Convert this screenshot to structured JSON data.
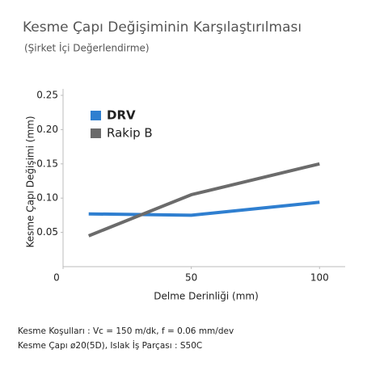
{
  "chart_data": {
    "type": "line",
    "title": "Kesme Çapı Değişiminin Karşılaştırılması",
    "subtitle": "(Şirket İçi Değerlendirme)",
    "x_label": "Delme Derinliği (mm)",
    "y_label": "Kesme Çapı Değişimi (mm)",
    "x": [
      10,
      50,
      100
    ],
    "series": [
      {
        "name": "DRV",
        "color": "#2f7fd0",
        "values": [
          0.077,
          0.075,
          0.094
        ]
      },
      {
        "name": "Rakip B",
        "color": "#6b6b6b",
        "values": [
          0.045,
          0.105,
          0.15
        ]
      }
    ],
    "xlim": [
      0,
      110
    ],
    "xticks": [
      0,
      50,
      100
    ],
    "ylim": [
      0,
      0.25
    ],
    "yticks": [
      0.05,
      {
        "value": 0.1,
        "label": "0.10"
      },
      0.15,
      {
        "value": 0.2,
        "label": "0.20"
      },
      0.25
    ],
    "grid": false,
    "legend": "top-left",
    "annotations": [
      "Kesme Koşulları : Vc = 150 m/dk, f = 0.06 mm/dev",
      "Kesme Çapı ø20(5D), Islak İş Parçası : S50C"
    ]
  }
}
